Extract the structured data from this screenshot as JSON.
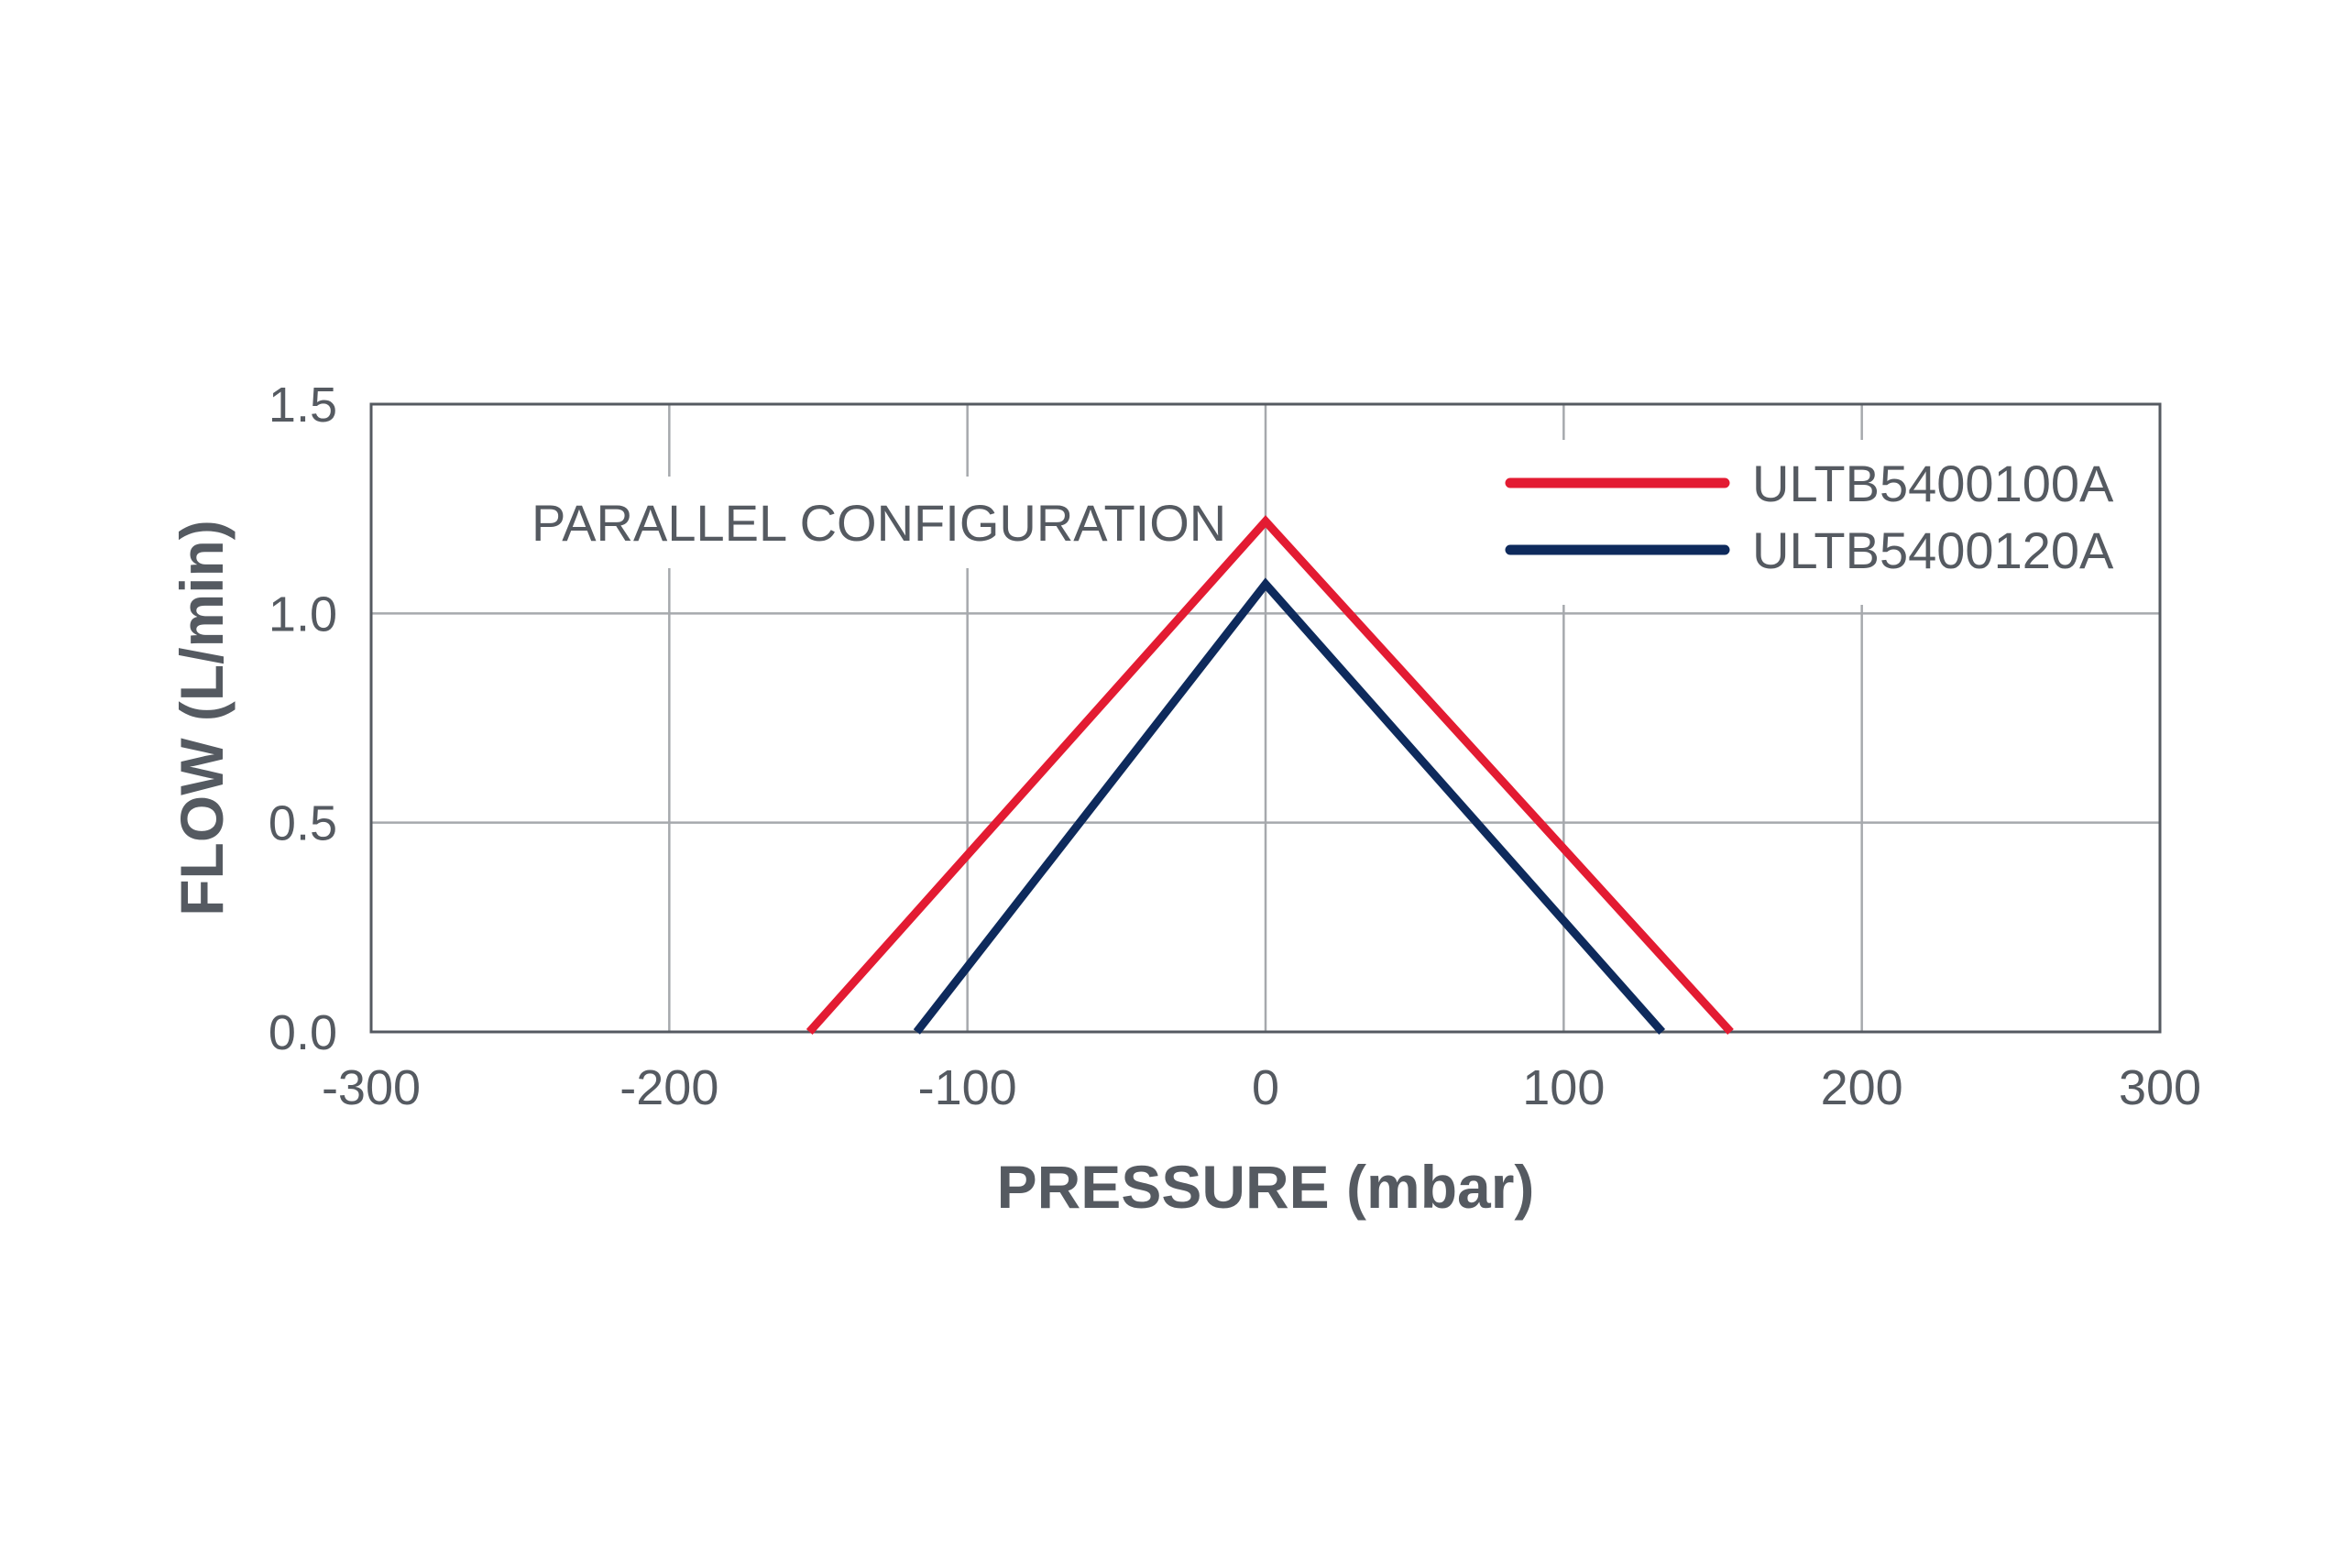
{
  "chart_data": {
    "type": "line",
    "title": "",
    "xlabel": "PRESSURE (mbar)",
    "ylabel": "FLOW (L/min)",
    "xlim": [
      -300,
      300
    ],
    "ylim": [
      0,
      1.5
    ],
    "xticks": [
      -300,
      -200,
      -100,
      0,
      100,
      200,
      300
    ],
    "xtick_labels": [
      "-300",
      "-200",
      "-100",
      "0",
      "100",
      "200",
      "300"
    ],
    "yticks": [
      0,
      0.5,
      1.0,
      1.5
    ],
    "ytick_labels": [
      "0.0",
      "0.5",
      "1.0",
      "1.5"
    ],
    "grid": true,
    "legend_position": "top-right",
    "annotation": "PARALLEL CONFIGURATION",
    "series": [
      {
        "name": "ULTB5400100A",
        "color": "#e31b32",
        "x": [
          -153,
          0,
          156
        ],
        "y": [
          0,
          1.22,
          0
        ]
      },
      {
        "name": "ULTB5400120A",
        "color": "#0e2a5c",
        "x": [
          -117,
          0,
          133
        ],
        "y": [
          0,
          1.07,
          0
        ]
      }
    ]
  }
}
